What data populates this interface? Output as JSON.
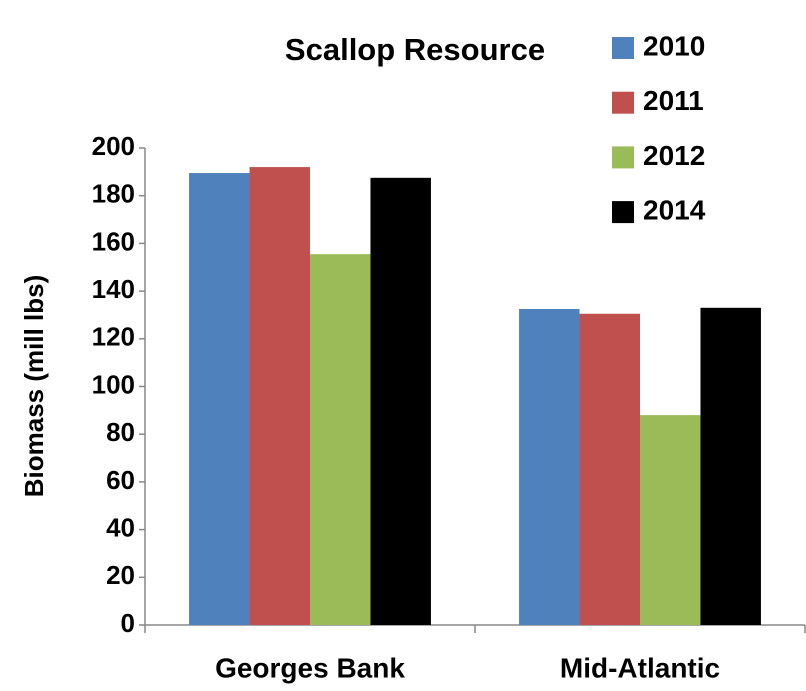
{
  "chart_data": {
    "type": "bar",
    "title": "Scallop Resource",
    "y_label": "Biomass (mill lbs)",
    "categories": [
      "Georges Bank",
      "Mid-Atlantic"
    ],
    "series": [
      {
        "name": "2010",
        "color": "#4f81bd",
        "values": [
          189.5,
          132.5
        ]
      },
      {
        "name": "2011",
        "color": "#c0504d",
        "values": [
          192,
          130.5
        ]
      },
      {
        "name": "2012",
        "color": "#9bbb59",
        "values": [
          155.5,
          88
        ]
      },
      {
        "name": "2014",
        "color": "#000000",
        "values": [
          187.5,
          133
        ]
      }
    ],
    "ylim": [
      0,
      200
    ],
    "yticks": [
      0,
      20,
      40,
      60,
      80,
      100,
      120,
      140,
      160,
      180,
      200
    ],
    "grid": false,
    "legend": "top-right"
  }
}
